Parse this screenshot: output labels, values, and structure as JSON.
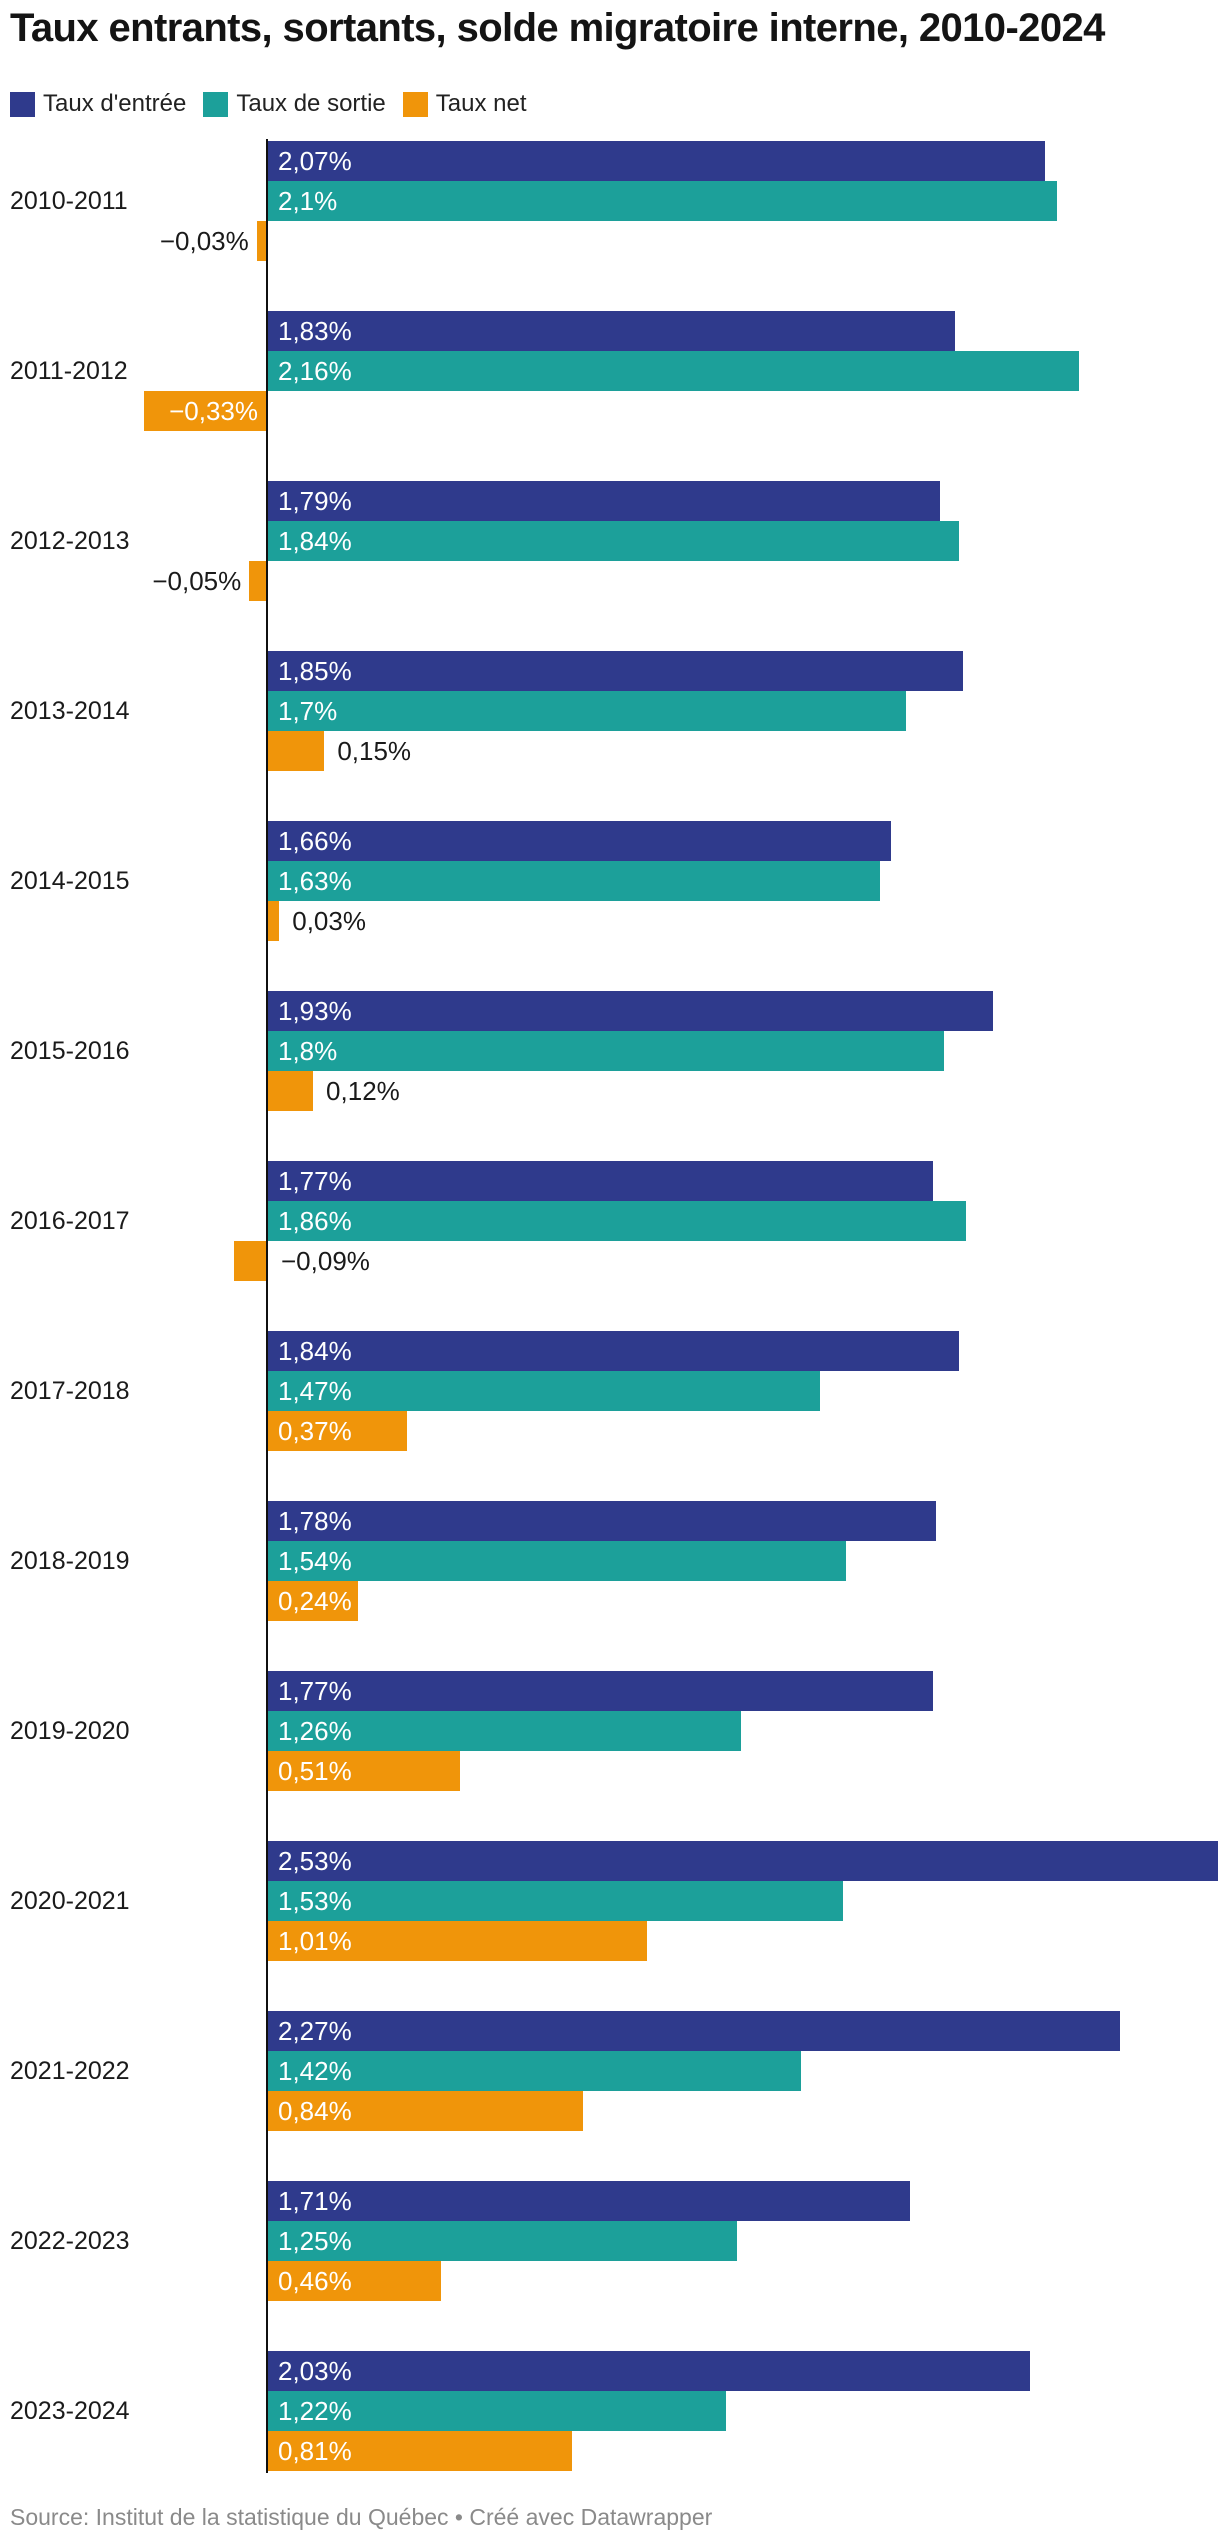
{
  "title": "Taux entrants, sortants, solde migratoire interne, 2010-2024",
  "legend": [
    {
      "label": "Taux d'entrée",
      "color": "#2F3A8C"
    },
    {
      "label": "Taux de sortie",
      "color": "#1CA09A"
    },
    {
      "label": "Taux net",
      "color": "#F0950A"
    }
  ],
  "footer": "Source: Institut de la statistique du Québec • Créé avec Datawrapper",
  "chart_data": {
    "type": "bar",
    "orientation": "horizontal",
    "title": "Taux entrants, sortants, solde migratoire interne, 2010-2024",
    "xlabel": "",
    "ylabel": "",
    "xlim": [
      -0.4,
      2.53
    ],
    "grid": false,
    "legend_position": "top",
    "baseline_value": 0,
    "categories": [
      "2010-2011",
      "2011-2012",
      "2012-2013",
      "2013-2014",
      "2014-2015",
      "2015-2016",
      "2016-2017",
      "2017-2018",
      "2018-2019",
      "2019-2020",
      "2020-2021",
      "2021-2022",
      "2022-2023",
      "2023-2024"
    ],
    "series": [
      {
        "name": "Taux d'entrée",
        "color": "#2F3A8C",
        "values": [
          2.07,
          1.83,
          1.79,
          1.85,
          1.66,
          1.93,
          1.77,
          1.84,
          1.78,
          1.77,
          2.53,
          2.27,
          1.71,
          2.03
        ],
        "labels": [
          "2,07%",
          "1,83%",
          "1,79%",
          "1,85%",
          "1,66%",
          "1,93%",
          "1,77%",
          "1,84%",
          "1,78%",
          "1,77%",
          "2,53%",
          "2,27%",
          "1,71%",
          "2,03%"
        ],
        "label_positions": [
          "in",
          "in",
          "in",
          "in",
          "in",
          "in",
          "in",
          "in",
          "in",
          "in",
          "in",
          "in",
          "in",
          "in"
        ]
      },
      {
        "name": "Taux de sortie",
        "color": "#1CA09A",
        "values": [
          2.1,
          2.16,
          1.84,
          1.7,
          1.63,
          1.8,
          1.86,
          1.47,
          1.54,
          1.26,
          1.53,
          1.42,
          1.25,
          1.22
        ],
        "labels": [
          "2,1%",
          "2,16%",
          "1,84%",
          "1,7%",
          "1,63%",
          "1,8%",
          "1,86%",
          "1,47%",
          "1,54%",
          "1,26%",
          "1,53%",
          "1,42%",
          "1,25%",
          "1,22%"
        ],
        "label_positions": [
          "in",
          "in",
          "in",
          "in",
          "in",
          "in",
          "in",
          "in",
          "in",
          "in",
          "in",
          "in",
          "in",
          "in"
        ]
      },
      {
        "name": "Taux net",
        "color": "#F0950A",
        "values": [
          -0.03,
          -0.33,
          -0.05,
          0.15,
          0.03,
          0.12,
          -0.09,
          0.37,
          0.24,
          0.51,
          1.01,
          0.84,
          0.46,
          0.81
        ],
        "labels": [
          "−0,03%",
          "−0,33%",
          "−0,05%",
          "0,15%",
          "0,03%",
          "0,12%",
          "−0,09%",
          "0,37%",
          "0,24%",
          "0,51%",
          "1,01%",
          "0,84%",
          "0,46%",
          "0,81%"
        ],
        "label_positions": [
          "left",
          "in",
          "left",
          "right",
          "right",
          "right",
          "right",
          "in",
          "in",
          "in",
          "in",
          "in",
          "in",
          "in"
        ]
      }
    ],
    "axis_color": "#101010"
  }
}
